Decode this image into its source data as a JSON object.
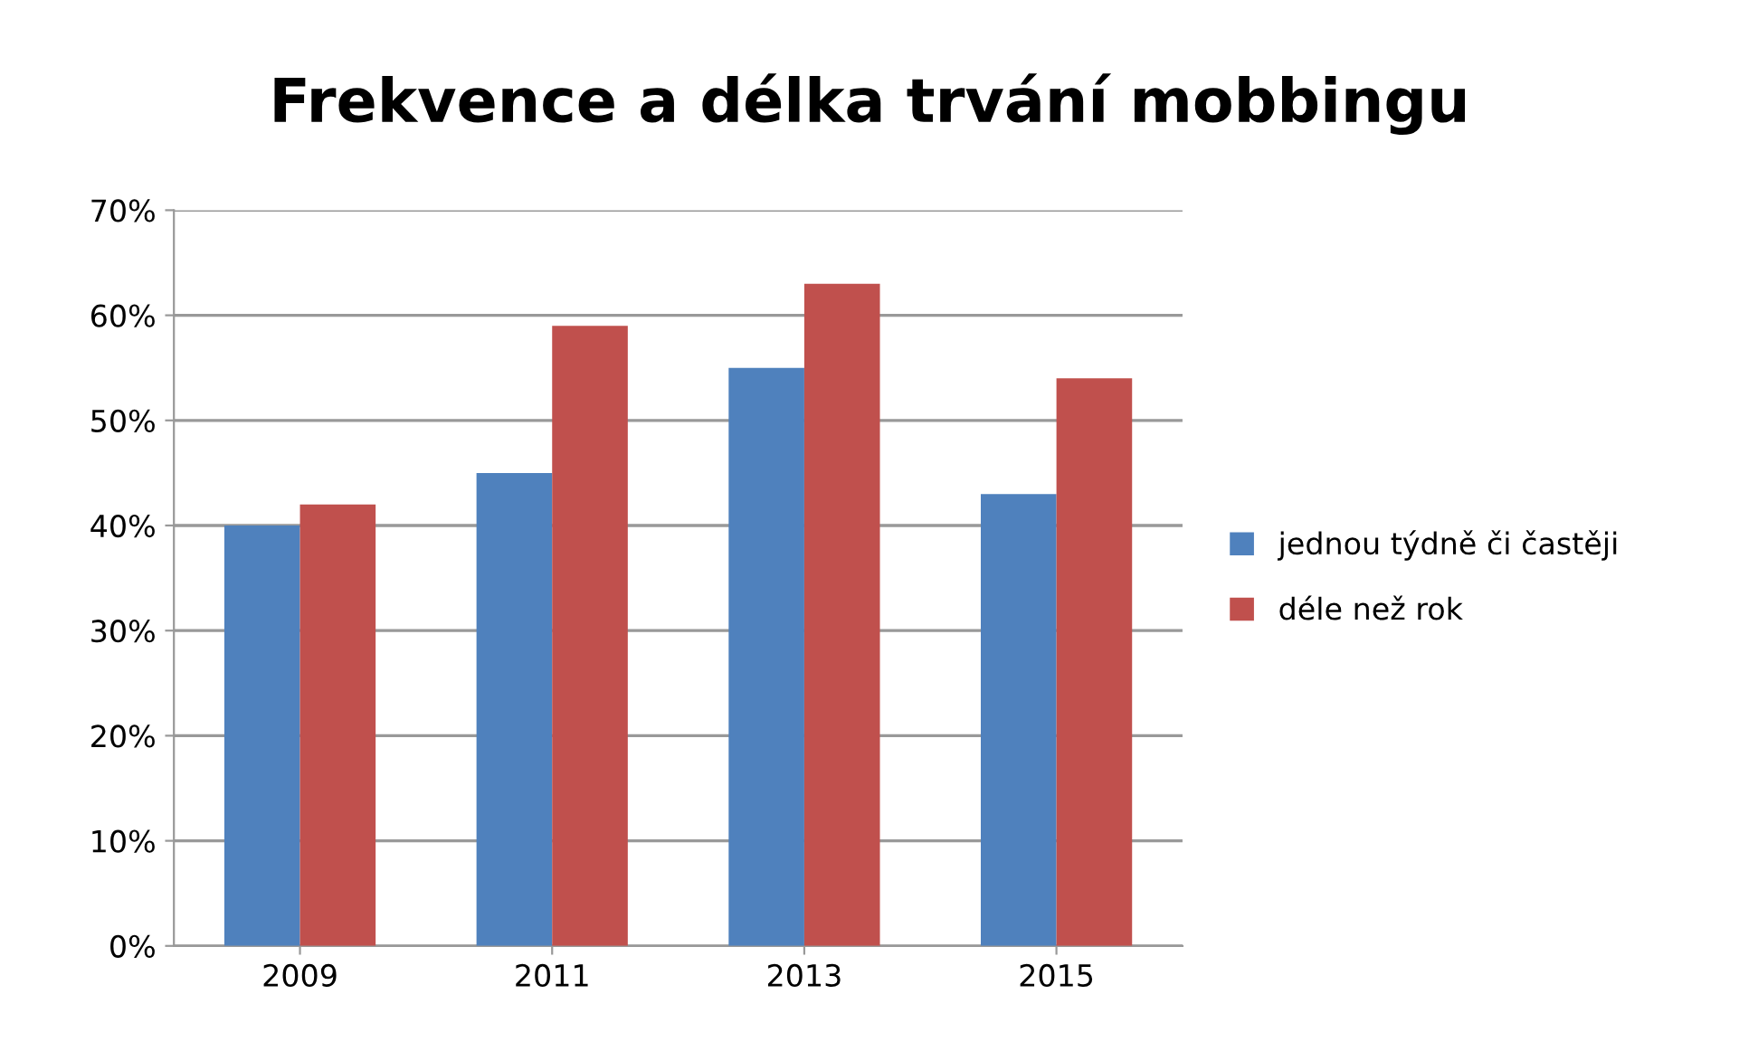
{
  "chart_data": {
    "type": "bar",
    "title": "Frekvence a délka trvání mobbingu",
    "categories": [
      "2009",
      "2011",
      "2013",
      "2015"
    ],
    "series": [
      {
        "name": "jednou týdně či častěji",
        "color": "#4f81bd",
        "values": [
          40,
          45,
          55,
          43
        ]
      },
      {
        "name": "déle než rok",
        "color": "#c0504d",
        "values": [
          42,
          59,
          63,
          54
        ]
      }
    ],
    "ylim": [
      0,
      70
    ],
    "yticks": [
      {
        "value": 0,
        "label": "0%"
      },
      {
        "value": 10,
        "label": "10%"
      },
      {
        "value": 20,
        "label": "20%"
      },
      {
        "value": 30,
        "label": "30%"
      },
      {
        "value": 40,
        "label": "40%"
      },
      {
        "value": 50,
        "label": "50%"
      },
      {
        "value": 60,
        "label": "60%"
      },
      {
        "value": 70,
        "label": "70%"
      }
    ],
    "grid": "y",
    "legend": "right"
  }
}
